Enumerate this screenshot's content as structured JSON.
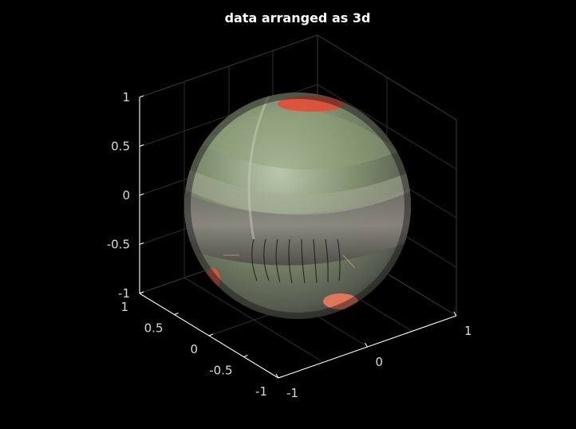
{
  "chart_data": {
    "type": "surface",
    "title": "data arranged as 3d",
    "xlabel": "",
    "ylabel": "",
    "zlabel": "",
    "xlim": [
      -1,
      1
    ],
    "ylim": [
      -1,
      1
    ],
    "zlim": [
      -1,
      1
    ],
    "x_ticks": [
      "-1",
      "0",
      "1"
    ],
    "y_ticks": [
      "-1",
      "-0.5",
      "0",
      "0.5",
      "1"
    ],
    "z_ticks": [
      "-1",
      "-0.5",
      "0",
      "0.5",
      "1"
    ],
    "grid": true,
    "surface": {
      "shape": "sphere",
      "radius": 1,
      "texture": "photographic image mapped onto sphere"
    },
    "colors": {
      "background": "#000000",
      "axis": "#ffffff",
      "grid": "#3a3a3a",
      "tick_text": "#d8d8d8"
    }
  }
}
